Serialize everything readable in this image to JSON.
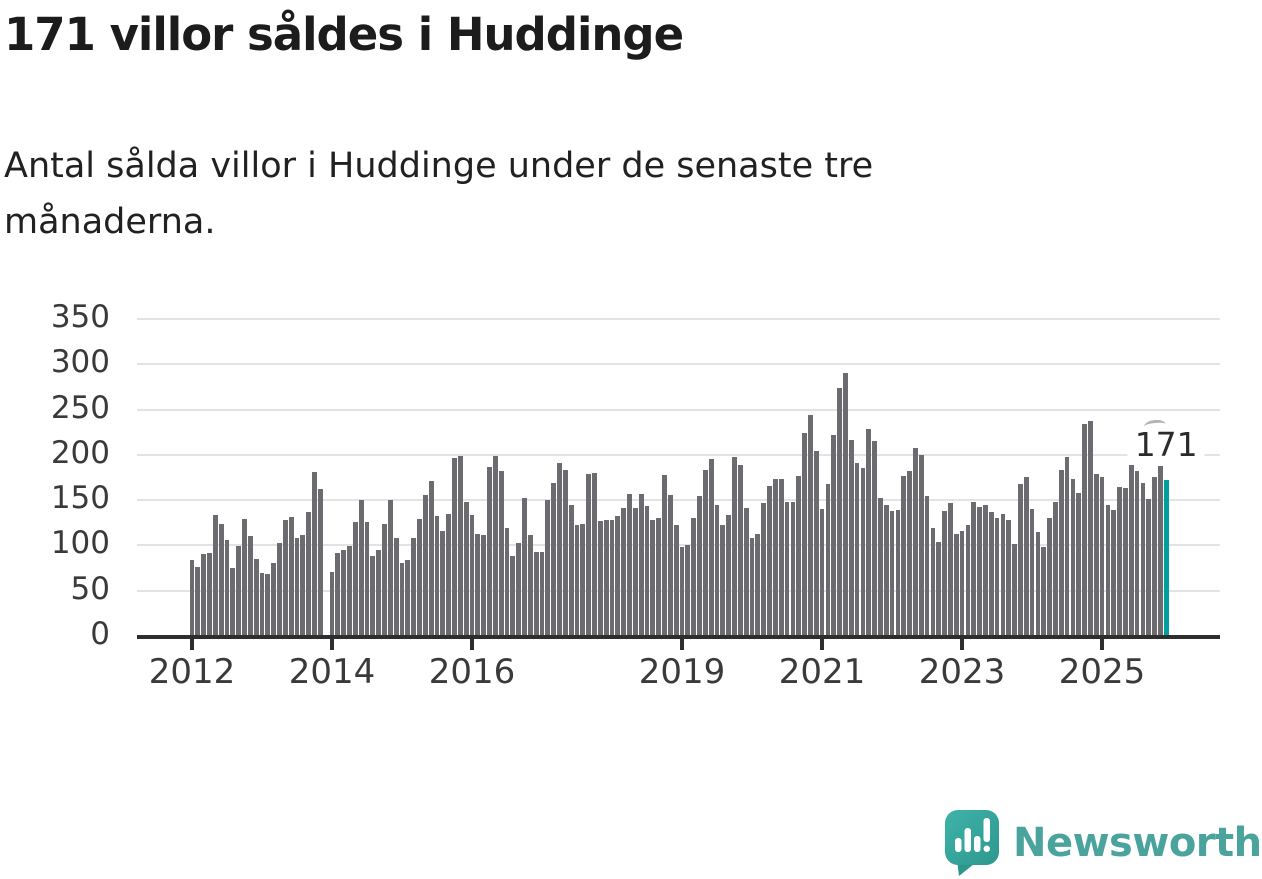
{
  "title": "171 villor såldes i Huddinge",
  "subtitle": "Antal sålda villor i Huddinge under de senaste tre månaderna.",
  "annotation": {
    "label": "171"
  },
  "footer": {
    "brand": "Newsworthy"
  },
  "colors": {
    "bar": "#6b6b70",
    "highlight": "#00a0a0",
    "grid": "#e3e3e3",
    "axis": "#2e2e2e",
    "tick_label": "#3a3a3a",
    "title": "#1c1c1c",
    "brand_teal": "#4aa49d",
    "annotation_mark": "#b4b4b4"
  },
  "chart_data": {
    "type": "bar",
    "title": "171 villor såldes i Huddinge",
    "xlabel": "",
    "ylabel": "",
    "ylim": [
      0,
      350
    ],
    "yticks": [
      0,
      50,
      100,
      150,
      200,
      250,
      300,
      350
    ],
    "grid": true,
    "legend": "none",
    "xtick_labels": [
      "2012",
      "2014",
      "2016",
      "2019",
      "2021",
      "2023",
      "2025"
    ],
    "xtick_month_indices": [
      0,
      24,
      48,
      84,
      108,
      132,
      156
    ],
    "highlight_index": 167,
    "highlight_value": 171,
    "months": [
      "2012-01",
      "2012-02",
      "2012-03",
      "2012-04",
      "2012-05",
      "2012-06",
      "2012-07",
      "2012-08",
      "2012-09",
      "2012-10",
      "2012-11",
      "2012-12",
      "2013-01",
      "2013-02",
      "2013-03",
      "2013-04",
      "2013-05",
      "2013-06",
      "2013-07",
      "2013-08",
      "2013-09",
      "2013-10",
      "2013-11",
      "2013-12",
      "2014-01",
      "2014-02",
      "2014-03",
      "2014-04",
      "2014-05",
      "2014-06",
      "2014-07",
      "2014-08",
      "2014-09",
      "2014-10",
      "2014-11",
      "2014-12",
      "2015-01",
      "2015-02",
      "2015-03",
      "2015-04",
      "2015-05",
      "2015-06",
      "2015-07",
      "2015-08",
      "2015-09",
      "2015-10",
      "2015-11",
      "2015-12",
      "2016-01",
      "2016-02",
      "2016-03",
      "2016-04",
      "2016-05",
      "2016-06",
      "2016-07",
      "2016-08",
      "2016-09",
      "2016-10",
      "2016-11",
      "2016-12",
      "2017-01",
      "2017-02",
      "2017-03",
      "2017-04",
      "2017-05",
      "2017-06",
      "2017-07",
      "2017-08",
      "2017-09",
      "2017-10",
      "2017-11",
      "2017-12",
      "2018-01",
      "2018-02",
      "2018-03",
      "2018-04",
      "2018-05",
      "2018-06",
      "2018-07",
      "2018-08",
      "2018-09",
      "2018-10",
      "2018-11",
      "2018-12",
      "2019-01",
      "2019-02",
      "2019-03",
      "2019-04",
      "2019-05",
      "2019-06",
      "2019-07",
      "2019-08",
      "2019-09",
      "2019-10",
      "2019-11",
      "2019-12",
      "2020-01",
      "2020-02",
      "2020-03",
      "2020-04",
      "2020-05",
      "2020-06",
      "2020-07",
      "2020-08",
      "2020-09",
      "2020-10",
      "2020-11",
      "2020-12",
      "2021-01",
      "2021-02",
      "2021-03",
      "2021-04",
      "2021-05",
      "2021-06",
      "2021-07",
      "2021-08",
      "2021-09",
      "2021-10",
      "2021-11",
      "2021-12",
      "2022-01",
      "2022-02",
      "2022-03",
      "2022-04",
      "2022-05",
      "2022-06",
      "2022-07",
      "2022-08",
      "2022-09",
      "2022-10",
      "2022-11",
      "2022-12",
      "2023-01",
      "2023-02",
      "2023-03",
      "2023-04",
      "2023-05",
      "2023-06",
      "2023-07",
      "2023-08",
      "2023-09",
      "2023-10",
      "2023-11",
      "2023-12",
      "2024-01",
      "2024-02",
      "2024-03",
      "2024-04",
      "2024-05",
      "2024-06",
      "2024-07",
      "2024-08",
      "2024-09",
      "2024-10",
      "2024-11",
      "2024-12",
      "2025-01",
      "2025-02",
      "2025-03",
      "2025-04",
      "2025-05",
      "2025-06",
      "2025-07",
      "2025-08",
      "2025-09",
      "2025-10",
      "2025-11",
      "2025-12"
    ],
    "values": [
      83,
      75,
      90,
      91,
      132,
      123,
      105,
      74,
      98,
      128,
      109,
      84,
      69,
      67,
      79,
      102,
      127,
      130,
      107,
      110,
      136,
      180,
      161,
      null,
      70,
      91,
      94,
      98,
      125,
      149,
      125,
      87,
      94,
      123,
      149,
      107,
      80,
      83,
      107,
      128,
      155,
      170,
      131,
      115,
      134,
      195,
      198,
      147,
      133,
      111,
      110,
      185,
      198,
      181,
      118,
      87,
      102,
      151,
      110,
      92,
      92,
      149,
      168,
      190,
      182,
      144,
      122,
      123,
      178,
      179,
      126,
      127,
      127,
      131,
      140,
      156,
      140,
      156,
      142,
      127,
      129,
      177,
      155,
      122,
      97,
      99,
      129,
      153,
      182,
      194,
      144,
      121,
      133,
      196,
      188,
      140,
      107,
      112,
      146,
      165,
      172,
      172,
      147,
      147,
      176,
      223,
      243,
      203,
      139,
      167,
      221,
      273,
      289,
      215,
      190,
      184,
      228,
      214,
      151,
      143,
      137,
      138,
      176,
      181,
      207,
      199,
      154,
      118,
      103,
      137,
      146,
      112,
      115,
      121,
      147,
      141,
      144,
      136,
      129,
      134,
      127,
      100,
      167,
      174,
      139,
      114,
      97,
      129,
      147,
      182,
      196,
      172,
      157,
      233,
      236,
      178,
      175,
      143,
      138,
      163,
      162,
      193,
      181,
      168,
      150,
      175,
      187,
      171
    ]
  }
}
